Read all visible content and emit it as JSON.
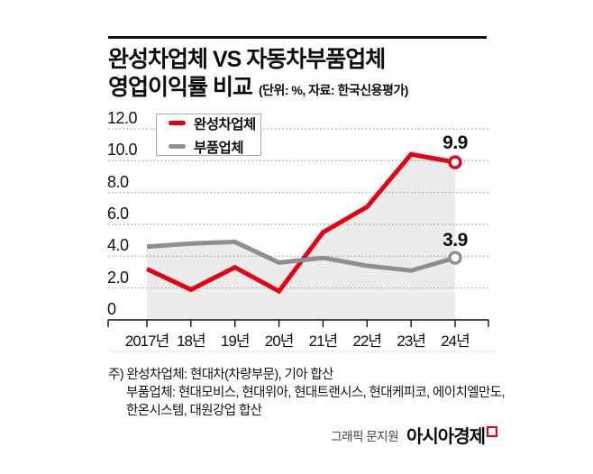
{
  "header": {
    "title_line1": "완성차업체 VS 자동차부품업체",
    "title_line2": "영업이익률 비교",
    "title_unit": "(단위: %, 자료: 한국신용평가)"
  },
  "chart_data": {
    "type": "line",
    "categories": [
      "2017년",
      "18년",
      "19년",
      "20년",
      "21년",
      "22년",
      "23년",
      "24년"
    ],
    "series": [
      {
        "name": "완성차업체",
        "color": "#e60012",
        "values": [
          3.2,
          1.9,
          3.3,
          1.8,
          5.5,
          7.1,
          10.4,
          9.9
        ],
        "end_label": "9.9",
        "end_marker": "open-circle"
      },
      {
        "name": "부품업체",
        "color": "#8f8f8f",
        "values": [
          4.6,
          4.8,
          4.9,
          3.6,
          3.9,
          3.4,
          3.1,
          3.9
        ],
        "end_label": "3.9",
        "end_marker": "open-circle"
      }
    ],
    "ylabel": "",
    "xlabel": "",
    "ylim": [
      0,
      12
    ],
    "ytick_step": 2,
    "ytick_labels": [
      "0",
      "2.0",
      "4.0",
      "6.0",
      "8.0",
      "10.0",
      "12.0"
    ],
    "grid": "horizontal-dotted",
    "legend_position": "top-left",
    "area_fill_under_lines": "#ececec"
  },
  "legend": {
    "items": [
      {
        "label": "완성차업체",
        "color": "#e60012"
      },
      {
        "label": "부품업체",
        "color": "#8f8f8f"
      }
    ]
  },
  "footnote": {
    "line1": "주) 완성차업체: 현대차(차량부문), 기아 합산",
    "line2": "부품업체: 현대모비스, 현대위아, 현대트랜시스, 현대케피코, 에이치엘만도,",
    "line3": "한온시스템, 대원강업 합산"
  },
  "credit": {
    "byline": "그래픽 문지원",
    "brand": "아시아경제"
  },
  "colors": {
    "accent_red": "#e60012",
    "series_gray": "#8f8f8f",
    "area_fill": "#ececec",
    "grid_dot": "#9e9e9e",
    "axis": "#111111"
  }
}
